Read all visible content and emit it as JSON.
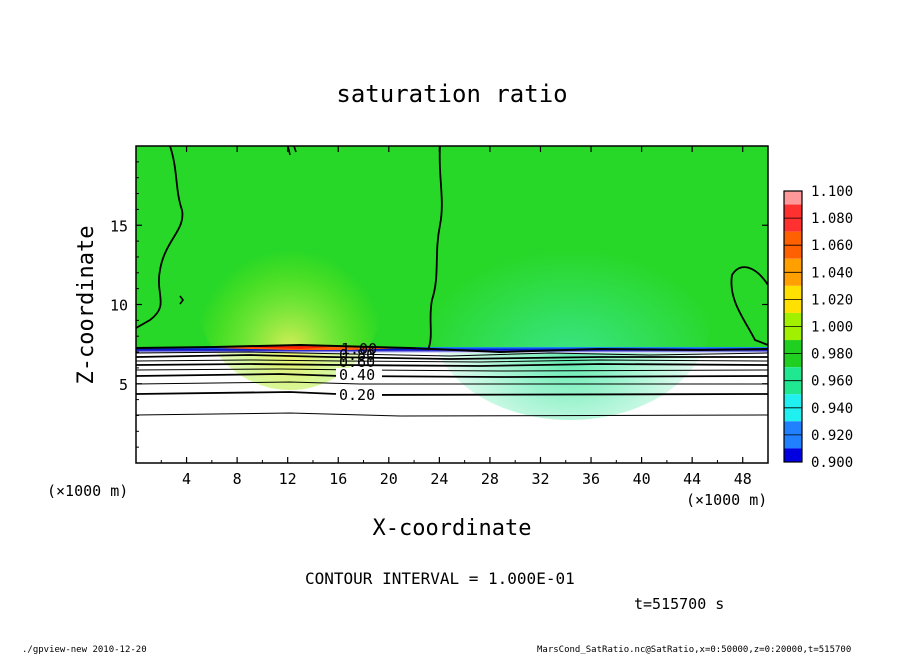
{
  "chart_data": {
    "type": "heatmap",
    "title": "saturation ratio",
    "xlabel": "X-coordinate",
    "ylabel": "Z-coordinate",
    "x_unit": "(×1000 m)",
    "x_unit_right": "(×1000 m)",
    "y_unit": "(×1000 m)",
    "xlim": [
      0,
      50
    ],
    "ylim": [
      0,
      20
    ],
    "x_ticks": [
      "4",
      "8",
      "12",
      "16",
      "20",
      "24",
      "28",
      "32",
      "36",
      "40",
      "44",
      "48"
    ],
    "y_ticks": [
      "5",
      "10",
      "15"
    ],
    "colorbar": {
      "levels": [
        "1.100",
        "1.080",
        "1.060",
        "1.040",
        "1.020",
        "1.000",
        "0.980",
        "0.960",
        "0.940",
        "0.920",
        "0.900"
      ],
      "colors": [
        "#ff9999",
        "#ff3030",
        "#ff6000",
        "#ffa000",
        "#ffe000",
        "#a0f000",
        "#20d020",
        "#20e890",
        "#20f0f0",
        "#2080ff",
        "#0000e0",
        "#6000b0"
      ]
    },
    "contour_labels": [
      "1.00",
      "0.80",
      "0.60",
      "0.40",
      "0.20"
    ],
    "contour_interval": "CONTOUR INTERVAL = 1.000E-01",
    "time": "t=515700 s"
  },
  "footer": {
    "left": "./gpview-new  2010-12-20",
    "right": "MarsCond_SatRatio.nc@SatRatio,x=0:50000,z=0:20000,t=515700"
  }
}
